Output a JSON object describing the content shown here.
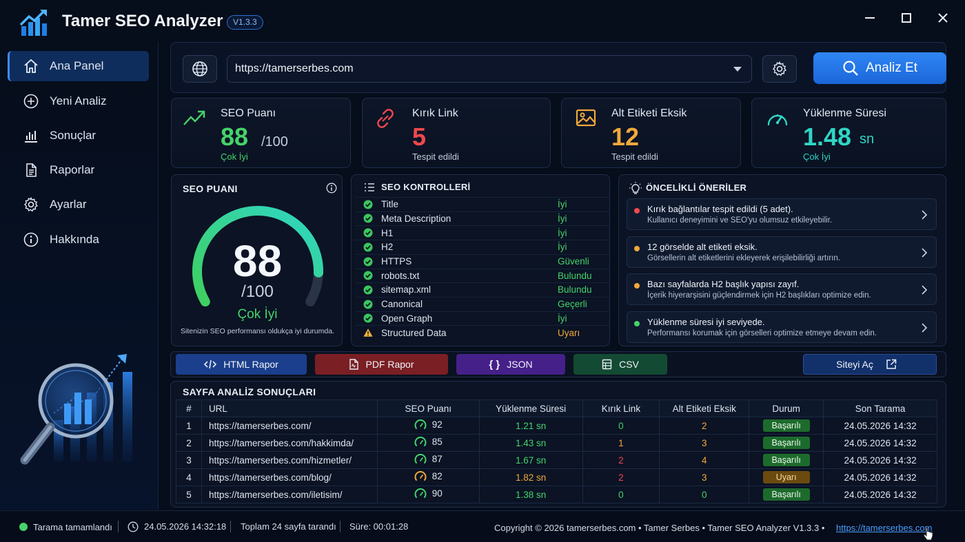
{
  "app": {
    "title": "Tamer SEO Analyzer",
    "version": "V1.3.3"
  },
  "sidebar": {
    "items": [
      {
        "label": "Ana Panel",
        "icon": "home-icon",
        "active": true
      },
      {
        "label": "Yeni Analiz",
        "icon": "plus-circle-icon"
      },
      {
        "label": "Sonuçlar",
        "icon": "bar-chart-icon"
      },
      {
        "label": "Raporlar",
        "icon": "document-icon"
      },
      {
        "label": "Ayarlar",
        "icon": "gear-icon"
      },
      {
        "label": "Hakkında",
        "icon": "info-icon"
      }
    ]
  },
  "search": {
    "url": "https://tamerserbes.com",
    "button_label": "Analiz Et"
  },
  "cards": {
    "seo": {
      "title": "SEO Puanı",
      "value": "88",
      "suffix": "/100",
      "sub": "Çok İyi"
    },
    "broken": {
      "title": "Kırık Link",
      "value": "5",
      "sub": "Tespit edildi"
    },
    "alt": {
      "title": "Alt Etiketi Eksik",
      "value": "12",
      "sub": "Tespit edildi"
    },
    "load": {
      "title": "Yüklenme Süresi",
      "value": "1.48",
      "unit": "sn",
      "sub": "Çok İyi"
    }
  },
  "gauge": {
    "title": "SEO PUANI",
    "score": "88",
    "max": "/100",
    "score_fraction": 0.88,
    "rating": "Çok İyi",
    "note": "Sitenizin SEO performansı oldukça iyi durumda."
  },
  "checks": {
    "title": "SEO KONTROLLERİ",
    "items": [
      {
        "name": "Title",
        "status": "İyi",
        "level": "ok"
      },
      {
        "name": "Meta Description",
        "status": "İyi",
        "level": "ok"
      },
      {
        "name": "H1",
        "status": "İyi",
        "level": "ok"
      },
      {
        "name": "H2",
        "status": "İyi",
        "level": "ok"
      },
      {
        "name": "HTTPS",
        "status": "Güvenli",
        "level": "ok"
      },
      {
        "name": "robots.txt",
        "status": "Bulundu",
        "level": "ok"
      },
      {
        "name": "sitemap.xml",
        "status": "Bulundu",
        "level": "ok"
      },
      {
        "name": "Canonical",
        "status": "Geçerli",
        "level": "ok"
      },
      {
        "name": "Open Graph",
        "status": "İyi",
        "level": "ok"
      },
      {
        "name": "Structured Data",
        "status": "Uyarı",
        "level": "warn"
      }
    ]
  },
  "recommendations": {
    "title": "ÖNCELİKLİ ÖNERİLER",
    "items": [
      {
        "title": "Kırık bağlantılar tespit edildi (5 adet).",
        "desc": "Kullanıcı deneyimini ve SEO'yu olumsuz etkileyebilir.",
        "color": "#f0484e"
      },
      {
        "title": "12 görselde alt etiketi eksik.",
        "desc": "Görsellerin alt etiketlerini ekleyerek erişilebilirliği artırın.",
        "color": "#f2a83b"
      },
      {
        "title": "Bazı sayfalarda H2 başlık yapısı zayıf.",
        "desc": "İçerik hiyerarşisini güçlendirmek için H2 başlıkları optimize edin.",
        "color": "#f2a83b"
      },
      {
        "title": "Yüklenme süresi iyi seviyede.",
        "desc": "Performansı korumak için görselleri optimize etmeye devam edin.",
        "color": "#45d36a"
      }
    ]
  },
  "exports": {
    "html": "HTML Rapor",
    "pdf": "PDF Rapor",
    "json": "JSON",
    "csv": "CSV",
    "open": "Siteyi Aç"
  },
  "results": {
    "title": "SAYFA ANALİZ SONUÇLARI",
    "columns": [
      "#",
      "URL",
      "SEO Puanı",
      "Yüklenme Süresi",
      "Kırık Link",
      "Alt Etiketi Eksik",
      "Durum",
      "Son Tarama"
    ],
    "rows": [
      {
        "n": "1",
        "url": "https://tamerserbes.com/",
        "score": "92",
        "load": "1.21 sn",
        "broken": "0",
        "alt": "2",
        "status": "Başarılı",
        "date": "24.05.2026 14:32"
      },
      {
        "n": "2",
        "url": "https://tamerserbes.com/hakkimda/",
        "score": "85",
        "load": "1.43 sn",
        "broken": "1",
        "alt": "3",
        "status": "Başarılı",
        "date": "24.05.2026 14:32"
      },
      {
        "n": "3",
        "url": "https://tamerserbes.com/hizmetler/",
        "score": "87",
        "load": "1.67 sn",
        "broken": "2",
        "alt": "4",
        "status": "Başarılı",
        "date": "24.05.2026 14:32"
      },
      {
        "n": "4",
        "url": "https://tamerserbes.com/blog/",
        "score": "82",
        "load": "1.82 sn",
        "broken": "2",
        "alt": "3",
        "status": "Uyarı",
        "date": "24.05.2026 14:32"
      },
      {
        "n": "5",
        "url": "https://tamerserbes.com/iletisim/",
        "score": "90",
        "load": "1.38 sn",
        "broken": "0",
        "alt": "0",
        "status": "Başarılı",
        "date": "24.05.2026 14:32"
      }
    ]
  },
  "status": {
    "state": "Tarama tamamlandı",
    "time": "24.05.2026 14:32:18",
    "pages": "Toplam 24 sayfa tarandı",
    "duration": "Süre: 00:01:28",
    "copyright": "Copyright © 2026 tamerserbes.com  •  Tamer Serbes  •  Tamer SEO Analyzer V1.3.3  •",
    "link": "https://tamerserbes.com"
  },
  "colors": {
    "accent": "#2f86f5",
    "good": "#45d36a",
    "warn": "#f2a83b",
    "bad": "#f0484e",
    "teal": "#2fd6c4"
  }
}
